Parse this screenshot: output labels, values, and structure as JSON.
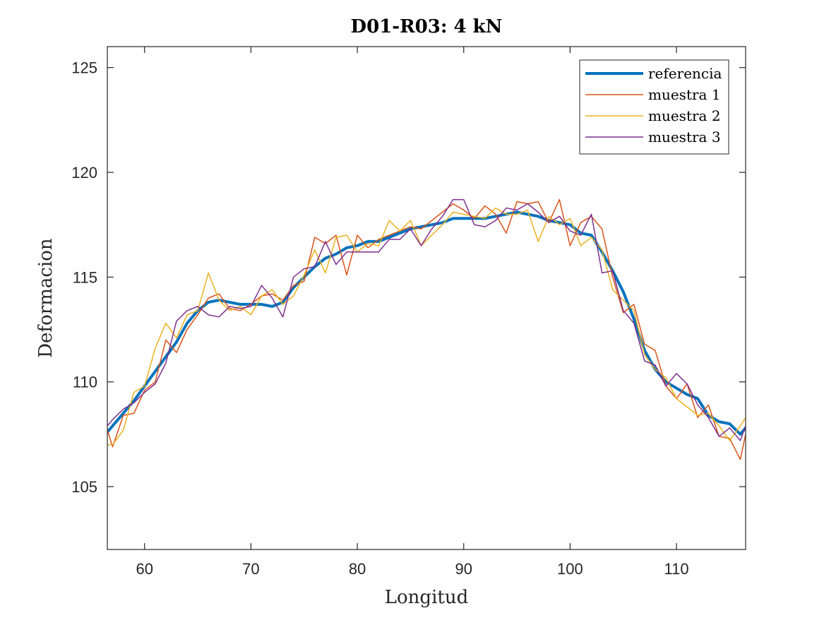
{
  "chart_data": {
    "type": "line",
    "title": "D01-R03:  4 kN",
    "xlabel": "Longitud",
    "ylabel": "Deformacion",
    "xlim": [
      56.5,
      116.5
    ],
    "ylim": [
      102,
      126
    ],
    "xticks": [
      60,
      70,
      80,
      90,
      100,
      110
    ],
    "yticks": [
      105,
      110,
      115,
      120,
      125
    ],
    "grid": false,
    "legend_position": "top-right",
    "x": [
      56.5,
      57,
      58,
      59,
      60,
      61,
      62,
      63,
      64,
      65,
      66,
      67,
      68,
      69,
      70,
      71,
      72,
      73,
      74,
      75,
      76,
      77,
      78,
      79,
      80,
      81,
      82,
      83,
      84,
      85,
      86,
      87,
      88,
      89,
      90,
      91,
      92,
      93,
      94,
      95,
      96,
      97,
      98,
      99,
      100,
      101,
      102,
      103,
      104,
      105,
      106,
      107,
      108,
      109,
      110,
      111,
      112,
      113,
      114,
      115,
      116,
      116.5
    ],
    "series": [
      {
        "name": "referencia",
        "color": "#0072BD",
        "width": 4,
        "values": [
          107.6,
          107.9,
          108.5,
          109.1,
          109.8,
          110.5,
          111.2,
          111.9,
          112.8,
          113.4,
          113.8,
          113.9,
          113.8,
          113.7,
          113.7,
          113.7,
          113.6,
          113.8,
          114.5,
          115.0,
          115.5,
          115.9,
          116.1,
          116.4,
          116.5,
          116.7,
          116.7,
          116.9,
          117.1,
          117.3,
          117.4,
          117.5,
          117.6,
          117.8,
          117.8,
          117.8,
          117.8,
          117.9,
          118.0,
          118.1,
          118.0,
          117.9,
          117.7,
          117.6,
          117.5,
          117.1,
          117.0,
          116.2,
          115.3,
          114.3,
          113.0,
          111.5,
          110.6,
          110.0,
          109.7,
          109.4,
          109.2,
          108.4,
          108.1,
          108.0,
          107.5,
          107.8
        ]
      },
      {
        "name": "muestra 1",
        "color": "#D95319",
        "width": 1.5,
        "values": [
          107.7,
          106.9,
          108.4,
          108.5,
          109.6,
          110.0,
          112.0,
          111.4,
          112.5,
          113.2,
          114.0,
          114.2,
          113.5,
          113.4,
          113.7,
          114.1,
          114.2,
          113.9,
          114.6,
          114.8,
          116.9,
          116.6,
          117.0,
          115.1,
          117.0,
          116.4,
          116.8,
          117.0,
          117.2,
          117.4,
          117.3,
          117.7,
          118.1,
          118.5,
          118.2,
          117.8,
          118.4,
          118.0,
          117.1,
          118.6,
          118.5,
          118.6,
          117.6,
          118.7,
          116.5,
          117.6,
          117.9,
          117.3,
          115.0,
          113.3,
          113.7,
          111.8,
          111.5,
          109.8,
          109.2,
          109.9,
          108.3,
          108.9,
          107.4,
          107.3,
          106.3,
          107.5
        ]
      },
      {
        "name": "muestra 2",
        "color": "#EDB120",
        "width": 1.5,
        "values": [
          107.0,
          107.0,
          107.7,
          109.5,
          109.8,
          111.6,
          112.8,
          112.1,
          113.2,
          113.4,
          115.2,
          113.9,
          113.4,
          113.6,
          113.2,
          114.1,
          114.4,
          113.7,
          114.1,
          115.1,
          116.3,
          115.2,
          116.9,
          117.0,
          116.2,
          116.6,
          116.5,
          117.7,
          117.2,
          117.7,
          116.5,
          117.0,
          117.5,
          118.1,
          118.0,
          117.9,
          117.8,
          118.3,
          118.0,
          118.0,
          118.2,
          116.7,
          117.9,
          117.5,
          117.8,
          116.5,
          116.9,
          116.3,
          114.4,
          113.9,
          113.4,
          111.3,
          110.6,
          110.2,
          109.2,
          108.8,
          108.4,
          108.5,
          107.9,
          107.2,
          107.9,
          108.3
        ]
      },
      {
        "name": "muestra 3",
        "color": "#7E2F8E",
        "width": 1.5,
        "values": [
          107.9,
          108.2,
          108.7,
          109.0,
          109.5,
          109.9,
          110.9,
          112.9,
          113.4,
          113.6,
          113.2,
          113.1,
          113.6,
          113.5,
          113.6,
          114.6,
          114.0,
          113.1,
          115.0,
          115.4,
          115.5,
          116.7,
          115.6,
          116.2,
          116.2,
          116.2,
          116.2,
          116.8,
          116.8,
          117.3,
          116.5,
          117.3,
          117.9,
          118.7,
          118.7,
          117.5,
          117.4,
          117.7,
          118.3,
          118.2,
          118.5,
          118.1,
          117.6,
          117.9,
          117.2,
          117.0,
          118.0,
          115.2,
          115.3,
          113.4,
          112.8,
          111.0,
          110.8,
          109.8,
          110.4,
          109.9,
          108.9,
          108.3,
          107.4,
          107.8,
          107.2,
          107.9
        ]
      }
    ]
  }
}
